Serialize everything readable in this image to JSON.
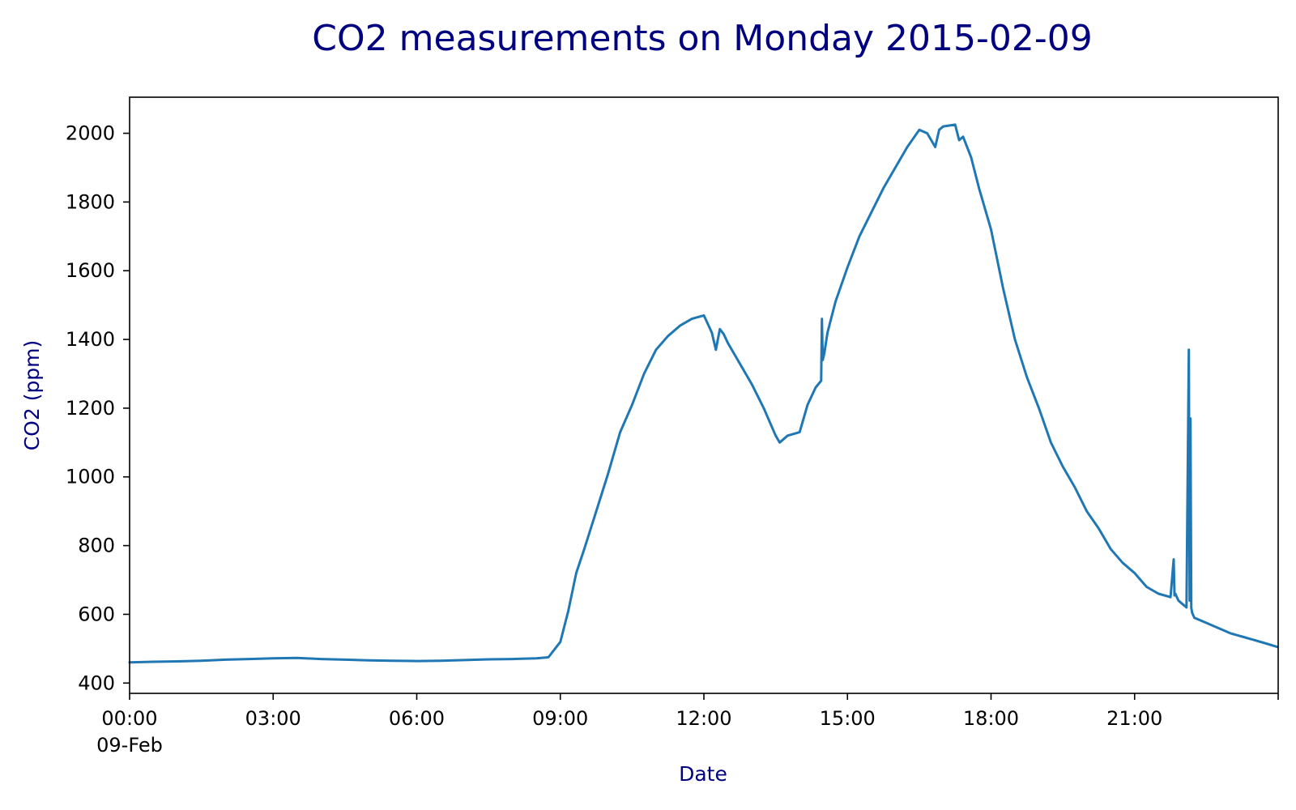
{
  "colors": {
    "title": "#000080",
    "axis_label": "#000080",
    "line": "#1f77b4",
    "axes": "#000000",
    "background": "#ffffff"
  },
  "chart_data": {
    "type": "line",
    "title": "CO2 measurements on Monday 2015-02-09",
    "xlabel": "Date",
    "ylabel": "CO2 (ppm)",
    "grid": false,
    "legend": "none",
    "xlim": [
      "2015-02-09 00:00",
      "2015-02-10 00:00"
    ],
    "ylim": [
      370,
      2105
    ],
    "x_ticks": [
      {
        "time": "2015-02-09 00:00",
        "label": "00:00",
        "sublabel": "09-Feb"
      },
      {
        "time": "2015-02-09 03:00",
        "label": "03:00"
      },
      {
        "time": "2015-02-09 06:00",
        "label": "06:00"
      },
      {
        "time": "2015-02-09 09:00",
        "label": "09:00"
      },
      {
        "time": "2015-02-09 12:00",
        "label": "12:00"
      },
      {
        "time": "2015-02-09 15:00",
        "label": "15:00"
      },
      {
        "time": "2015-02-09 18:00",
        "label": "18:00"
      },
      {
        "time": "2015-02-09 21:00",
        "label": "21:00"
      }
    ],
    "y_ticks": [
      400,
      600,
      800,
      1000,
      1200,
      1400,
      1600,
      1800,
      2000
    ],
    "series": [
      {
        "x": [
          "00:00",
          "00:30",
          "01:00",
          "01:30",
          "02:00",
          "02:30",
          "03:00",
          "03:30",
          "04:00",
          "04:30",
          "05:00",
          "05:30",
          "06:00",
          "06:30",
          "07:00",
          "07:30",
          "08:00",
          "08:30",
          "08:45",
          "09:00",
          "09:10",
          "09:20",
          "09:30",
          "09:45",
          "10:00",
          "10:15",
          "10:30",
          "10:45",
          "11:00",
          "11:15",
          "11:30",
          "11:45",
          "12:00",
          "12:10",
          "12:15",
          "12:20",
          "12:25",
          "12:30",
          "12:45",
          "13:00",
          "13:15",
          "13:30",
          "13:35",
          "13:45",
          "14:00",
          "14:10",
          "14:20",
          "14:27",
          "14:28",
          "14:29",
          "14:31",
          "14:35",
          "14:45",
          "15:00",
          "15:15",
          "15:30",
          "15:45",
          "16:00",
          "16:15",
          "16:30",
          "16:40",
          "16:50",
          "16:55",
          "17:00",
          "17:15",
          "17:20",
          "17:25",
          "17:35",
          "17:45",
          "18:00",
          "18:15",
          "18:30",
          "18:45",
          "19:00",
          "19:15",
          "19:30",
          "19:45",
          "20:00",
          "20:15",
          "20:30",
          "20:45",
          "21:00",
          "21:15",
          "21:30",
          "21:45",
          "21:49",
          "21:50",
          "21:51",
          "21:55",
          "22:00",
          "22:05",
          "22:08",
          "22:09",
          "22:10",
          "22:11",
          "22:12",
          "22:13",
          "22:15",
          "22:30",
          "22:45",
          "23:00",
          "23:15",
          "23:30",
          "23:45",
          "23:59"
        ],
        "values": [
          460,
          462,
          463,
          465,
          468,
          470,
          472,
          473,
          470,
          468,
          466,
          465,
          464,
          465,
          467,
          469,
          470,
          472,
          475,
          520,
          610,
          720,
          790,
          900,
          1010,
          1130,
          1210,
          1300,
          1370,
          1410,
          1440,
          1460,
          1470,
          1420,
          1370,
          1430,
          1415,
          1390,
          1330,
          1270,
          1200,
          1120,
          1100,
          1120,
          1130,
          1210,
          1260,
          1280,
          1460,
          1340,
          1360,
          1420,
          1510,
          1610,
          1700,
          1770,
          1840,
          1900,
          1960,
          2010,
          2000,
          1960,
          2010,
          2020,
          2025,
          1980,
          1990,
          1930,
          1840,
          1720,
          1550,
          1400,
          1290,
          1200,
          1100,
          1030,
          970,
          900,
          850,
          790,
          750,
          720,
          680,
          660,
          650,
          760,
          655,
          660,
          640,
          630,
          620,
          1370,
          640,
          1170,
          620,
          605,
          600,
          590,
          575,
          560,
          545,
          535,
          525,
          515,
          505
        ]
      }
    ]
  }
}
